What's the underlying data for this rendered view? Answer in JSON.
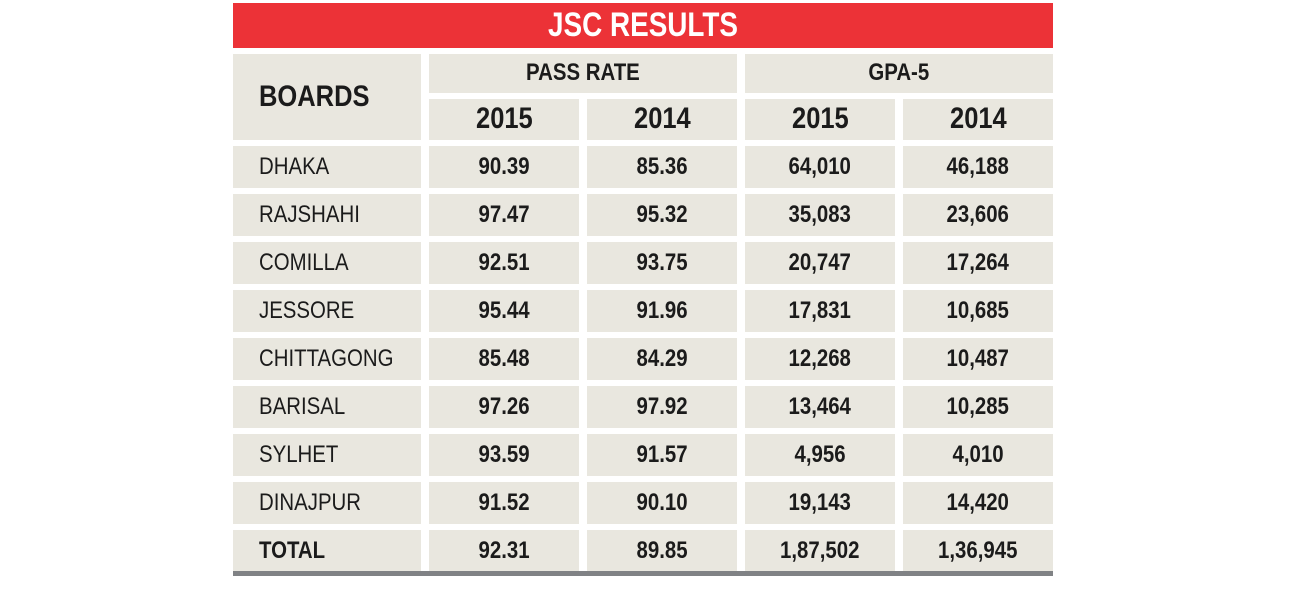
{
  "title": "JSC RESULTS",
  "header": {
    "boards": "BOARDS",
    "groups": [
      "PASS RATE",
      "GPA-5"
    ],
    "years": [
      "2015",
      "2014",
      "2015",
      "2014"
    ]
  },
  "rows": [
    {
      "board": "DHAKA",
      "pass_2015": "90.39",
      "pass_2014": "85.36",
      "gpa_2015": "64,010",
      "gpa_2014": "46,188"
    },
    {
      "board": "RAJSHAHI",
      "pass_2015": "97.47",
      "pass_2014": "95.32",
      "gpa_2015": "35,083",
      "gpa_2014": "23,606"
    },
    {
      "board": "COMILLA",
      "pass_2015": "92.51",
      "pass_2014": "93.75",
      "gpa_2015": "20,747",
      "gpa_2014": "17,264"
    },
    {
      "board": "JESSORE",
      "pass_2015": "95.44",
      "pass_2014": "91.96",
      "gpa_2015": "17,831",
      "gpa_2014": "10,685"
    },
    {
      "board": "CHITTAGONG",
      "pass_2015": "85.48",
      "pass_2014": "84.29",
      "gpa_2015": "12,268",
      "gpa_2014": "10,487"
    },
    {
      "board": "BARISAL",
      "pass_2015": "97.26",
      "pass_2014": "97.92",
      "gpa_2015": "13,464",
      "gpa_2014": "10,285"
    },
    {
      "board": "SYLHET",
      "pass_2015": "93.59",
      "pass_2014": "91.57",
      "gpa_2015": "4,956",
      "gpa_2014": "4,010"
    },
    {
      "board": "DINAJPUR",
      "pass_2015": "91.52",
      "pass_2014": "90.10",
      "gpa_2015": "19,143",
      "gpa_2014": "14,420"
    }
  ],
  "total": {
    "board": "TOTAL",
    "pass_2015": "92.31",
    "pass_2014": "89.85",
    "gpa_2015": "1,87,502",
    "gpa_2014": "1,36,945"
  },
  "colors": {
    "title_bg": "#ec3237",
    "cell_bg": "#e9e7df",
    "rule": "#808285"
  },
  "chart_data": {
    "type": "table",
    "title": "JSC RESULTS",
    "columns": [
      "BOARDS",
      "PASS RATE 2015",
      "PASS RATE 2014",
      "GPA-5 2015",
      "GPA-5 2014"
    ],
    "rows": [
      [
        "DHAKA",
        90.39,
        85.36,
        64010,
        46188
      ],
      [
        "RAJSHAHI",
        97.47,
        95.32,
        35083,
        23606
      ],
      [
        "COMILLA",
        92.51,
        93.75,
        20747,
        17264
      ],
      [
        "JESSORE",
        95.44,
        91.96,
        17831,
        10685
      ],
      [
        "CHITTAGONG",
        85.48,
        84.29,
        12268,
        10487
      ],
      [
        "BARISAL",
        97.26,
        97.92,
        13464,
        10285
      ],
      [
        "SYLHET",
        93.59,
        91.57,
        4956,
        4010
      ],
      [
        "DINAJPUR",
        91.52,
        90.1,
        19143,
        14420
      ],
      [
        "TOTAL",
        92.31,
        89.85,
        187502,
        136945
      ]
    ]
  }
}
